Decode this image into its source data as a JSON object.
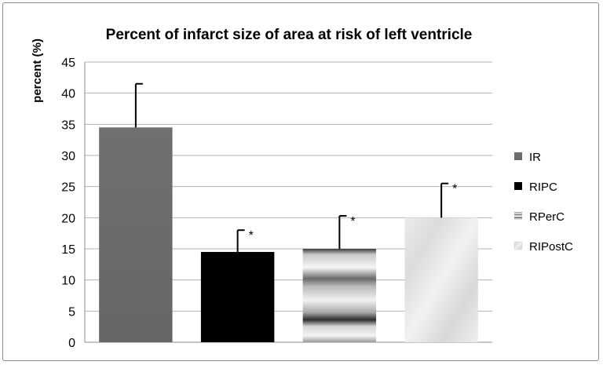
{
  "chart_data": {
    "type": "bar",
    "title": "Percent of infarct size of area at risk of left ventricle",
    "ylabel": "percent (%)",
    "xlabel": "",
    "ylim": [
      0,
      45
    ],
    "yticks": [
      0,
      5,
      10,
      15,
      20,
      25,
      30,
      35,
      40,
      45
    ],
    "grid": true,
    "legend_position": "right",
    "series": [
      {
        "name": "IR",
        "value": 34.5,
        "error": 7.0,
        "significance": "",
        "color": "#6b6b6b"
      },
      {
        "name": "RIPC",
        "value": 14.5,
        "error": 3.5,
        "significance": "*",
        "color": "#000000"
      },
      {
        "name": "RPerC",
        "value": 15.0,
        "error": 5.3,
        "significance": "*",
        "color": "#9a9a9a"
      },
      {
        "name": "RIPostC",
        "value": 20.0,
        "error": 5.5,
        "significance": "*",
        "color": "#e6e6e6"
      }
    ]
  }
}
